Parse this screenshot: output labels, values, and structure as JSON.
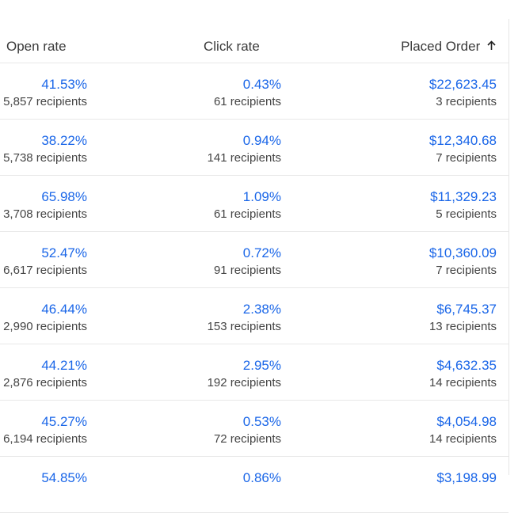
{
  "columns": {
    "open_rate": "Open rate",
    "click_rate": "Click rate",
    "placed_order": "Placed Order",
    "sort_icon": "arrow-up-icon"
  },
  "rows": [
    {
      "open": "41.53%",
      "open_sub": "5,857 recipients",
      "click": "0.43%",
      "click_sub": "61 recipients",
      "order": "$22,623.45",
      "order_sub": "3 recipients"
    },
    {
      "open": "38.22%",
      "open_sub": "5,738 recipients",
      "click": "0.94%",
      "click_sub": "141 recipients",
      "order": "$12,340.68",
      "order_sub": "7 recipients"
    },
    {
      "open": "65.98%",
      "open_sub": "3,708 recipients",
      "click": "1.09%",
      "click_sub": "61 recipients",
      "order": "$11,329.23",
      "order_sub": "5 recipients"
    },
    {
      "open": "52.47%",
      "open_sub": "6,617 recipients",
      "click": "0.72%",
      "click_sub": "91 recipients",
      "order": "$10,360.09",
      "order_sub": "7 recipients"
    },
    {
      "open": "46.44%",
      "open_sub": "2,990 recipients",
      "click": "2.38%",
      "click_sub": "153 recipients",
      "order": "$6,745.37",
      "order_sub": "13 recipients"
    },
    {
      "open": "44.21%",
      "open_sub": "2,876 recipients",
      "click": "2.95%",
      "click_sub": "192 recipients",
      "order": "$4,632.35",
      "order_sub": "14 recipients"
    },
    {
      "open": "45.27%",
      "open_sub": "6,194 recipients",
      "click": "0.53%",
      "click_sub": "72 recipients",
      "order": "$4,054.98",
      "order_sub": "14 recipients"
    },
    {
      "open": "54.85%",
      "open_sub": "",
      "click": "0.86%",
      "click_sub": "",
      "order": "$3,198.99",
      "order_sub": ""
    }
  ]
}
